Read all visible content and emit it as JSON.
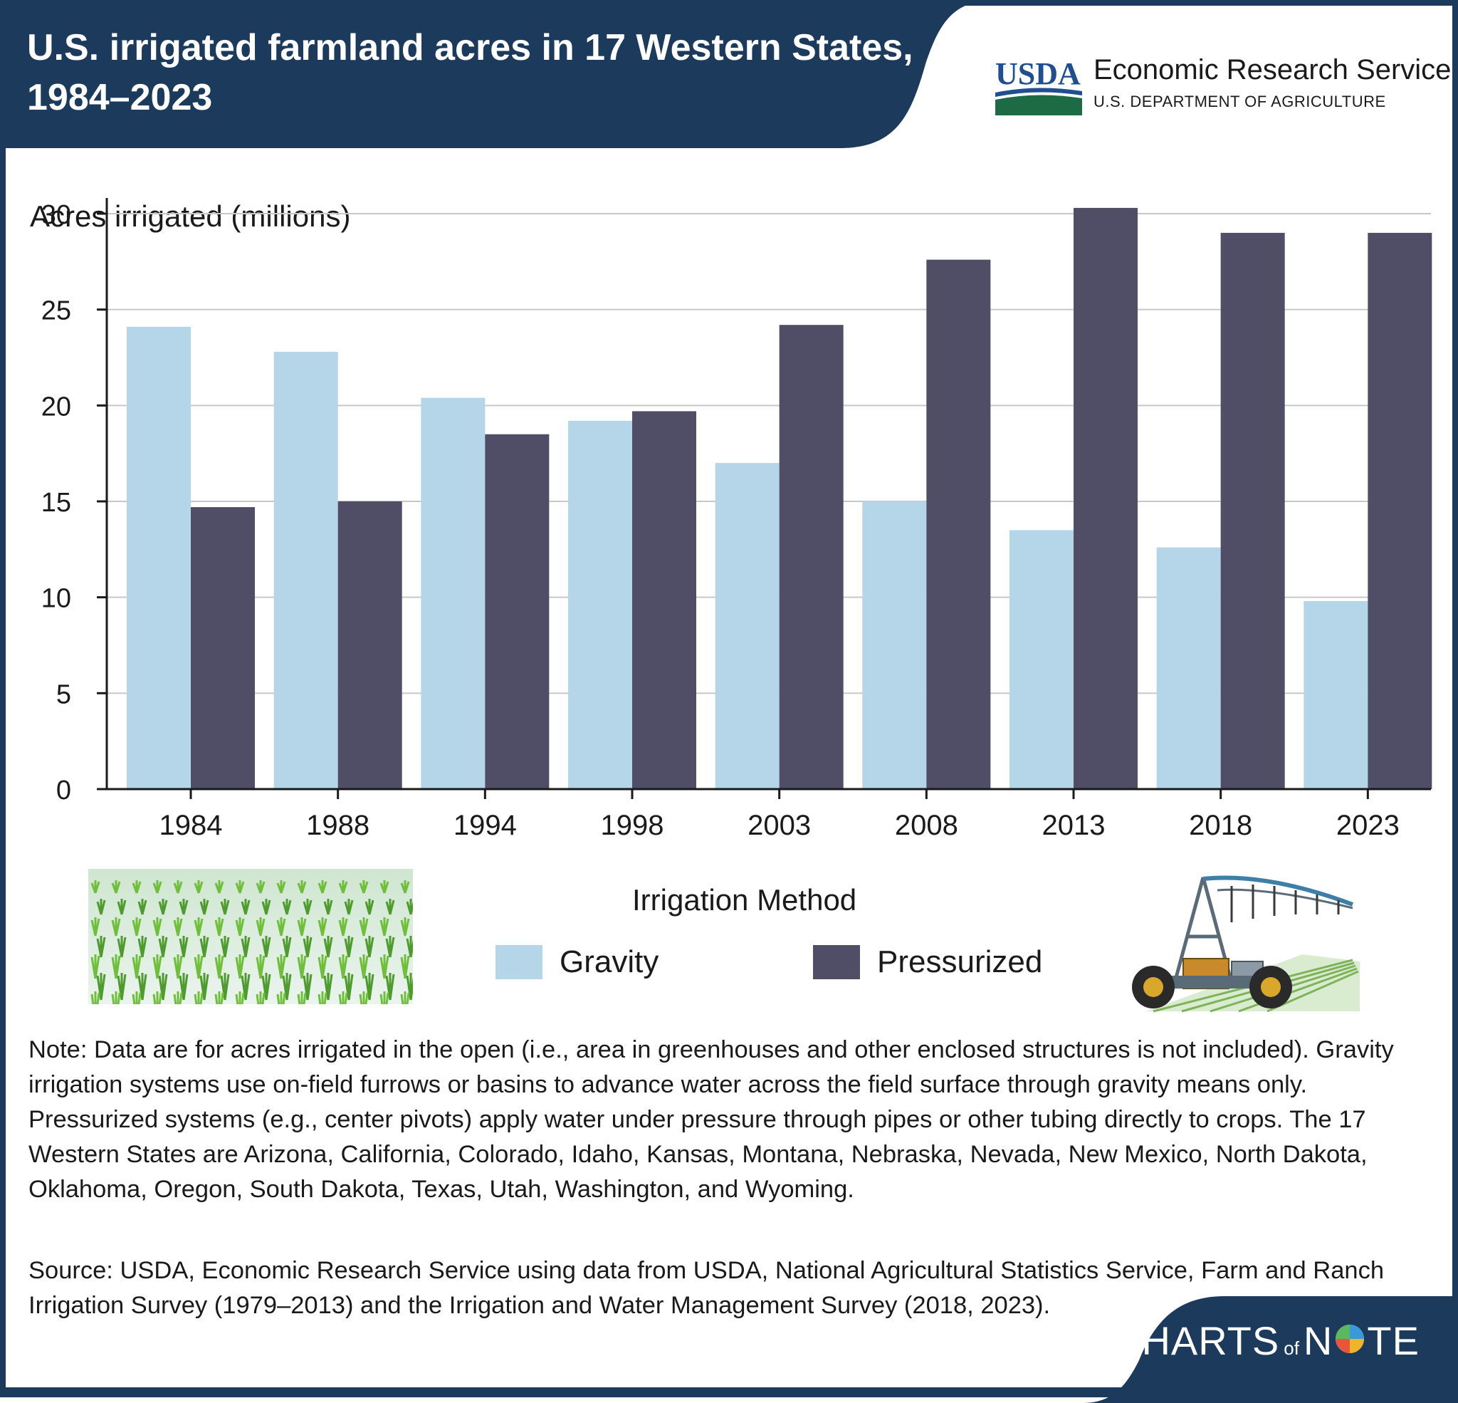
{
  "header": {
    "title": "U.S. irrigated farmland acres in 17 Western States, 1984–2023",
    "agency": "Economic Research Service",
    "department": "U.S. DEPARTMENT OF AGRICULTURE",
    "logo_text": "USDA",
    "banner_color": "#1b3a5c"
  },
  "chart_data": {
    "type": "bar",
    "title": "U.S. irrigated farmland acres in 17 Western States, 1984–2023",
    "xlabel": "",
    "ylabel": "Acres irrigated (millions)",
    "ylim": [
      0,
      30
    ],
    "yticks": [
      0,
      5,
      10,
      15,
      20,
      25,
      30
    ],
    "grid": true,
    "categories": [
      "1984",
      "1988",
      "1994",
      "1998",
      "2003",
      "2008",
      "2013",
      "2018",
      "2023"
    ],
    "series": [
      {
        "name": "Gravity",
        "color": "#b5d5e8",
        "values": [
          24.1,
          22.8,
          20.4,
          19.2,
          17.0,
          15.0,
          13.5,
          12.6,
          9.8
        ]
      },
      {
        "name": "Pressurized",
        "color": "#4f4e66",
        "values": [
          14.7,
          15.0,
          18.5,
          19.7,
          24.2,
          27.6,
          30.3,
          29.0,
          29.0
        ]
      }
    ],
    "legend_title": "Irrigation Method",
    "legend_position": "bottom"
  },
  "note": "Note: Data are for acres irrigated in the open (i.e., area in greenhouses and other enclosed structures is not included). Gravity irrigation systems use on-field furrows or basins to advance water across the field surface through gravity means only. Pressurized systems (e.g., center pivots) apply water under pressure through pipes or other tubing directly to crops. The 17 Western States are Arizona, California, Colorado, Idaho, Kansas, Montana, Nebraska, Nevada, New Mexico, North Dakota, Oklahoma, Oregon, South Dakota, Texas, Utah, Washington, and Wyoming.",
  "source": "Source: USDA, Economic Research Service using data from USDA, National Agricultural Statistics Service, Farm and Ranch Irrigation Survey (1979–2013) and the Irrigation and Water Management Survey (2018, 2023).",
  "footer": {
    "brand_main": "CHARTS",
    "brand_of": "of",
    "brand_end": "N",
    "brand_tail": "TE"
  },
  "icons": [
    "usda-logo-icon",
    "crop-rows-icon",
    "center-pivot-icon",
    "pie-o-icon"
  ]
}
